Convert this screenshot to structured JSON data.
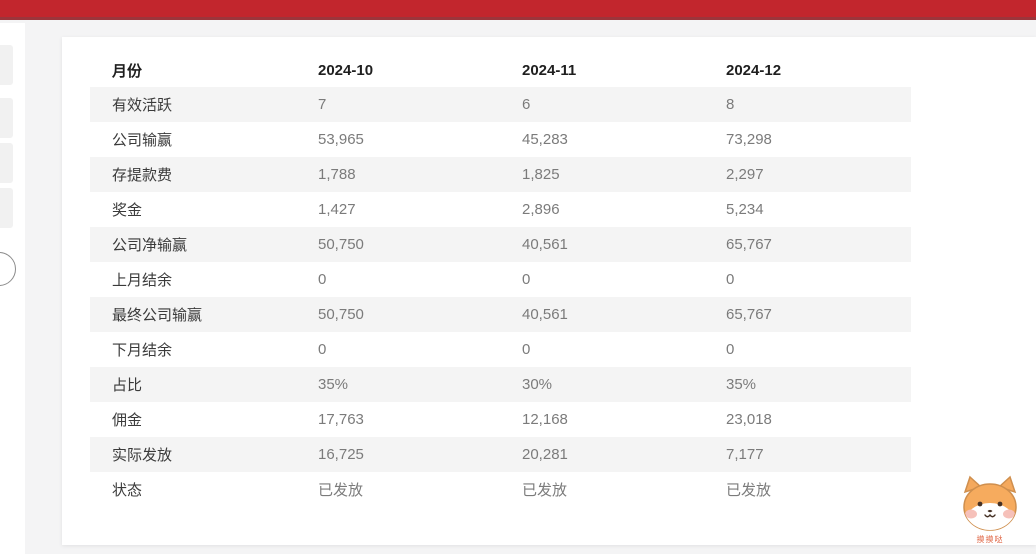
{
  "colors": {
    "topbar": "#c2262d",
    "topbar_border": "#9c353b",
    "page_bg": "#f4f4f5",
    "stripe": "#f4f4f4",
    "header_text": "#1f1f1f",
    "label_text": "#3a3a3a",
    "value_text": "#7b7b7b"
  },
  "table": {
    "columns": [
      "月份",
      "2024-10",
      "2024-11",
      "2024-12"
    ],
    "rows": [
      {
        "label": "有效活跃",
        "values": [
          "7",
          "6",
          "8"
        ]
      },
      {
        "label": "公司输赢",
        "values": [
          "53,965",
          "45,283",
          "73,298"
        ]
      },
      {
        "label": "存提款费",
        "values": [
          "1,788",
          "1,825",
          "2,297"
        ]
      },
      {
        "label": "奖金",
        "values": [
          "1,427",
          "2,896",
          "5,234"
        ]
      },
      {
        "label": "公司净输赢",
        "values": [
          "50,750",
          "40,561",
          "65,767"
        ]
      },
      {
        "label": "上月结余",
        "values": [
          "0",
          "0",
          "0"
        ]
      },
      {
        "label": "最终公司输赢",
        "values": [
          "50,750",
          "40,561",
          "65,767"
        ]
      },
      {
        "label": "下月结余",
        "values": [
          "0",
          "0",
          "0"
        ]
      },
      {
        "label": "占比",
        "values": [
          "35%",
          "30%",
          "35%"
        ]
      },
      {
        "label": "佣金",
        "values": [
          "17,763",
          "12,168",
          "23,018"
        ]
      },
      {
        "label": "实际发放",
        "values": [
          "16,725",
          "20,281",
          "7,177"
        ]
      },
      {
        "label": "状态",
        "values": [
          "已发放",
          "已发放",
          "已发放"
        ]
      }
    ]
  },
  "mascot": {
    "caption": "摸摸哒"
  }
}
